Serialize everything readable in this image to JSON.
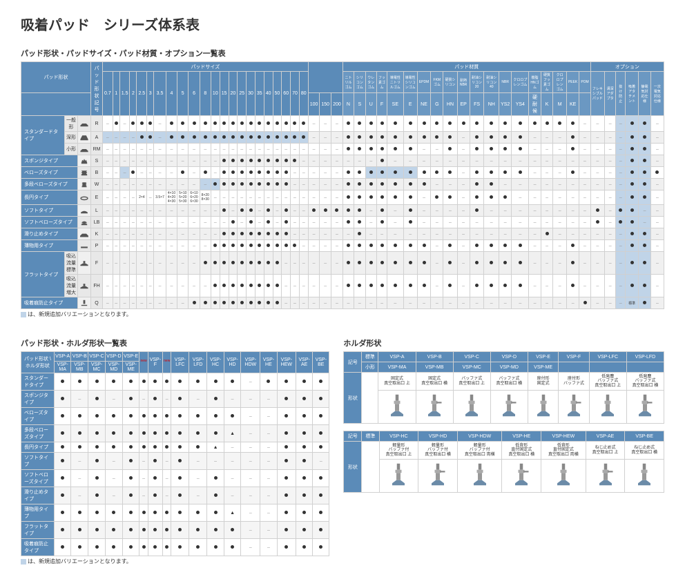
{
  "title": "吸着パッド　シリーズ体系表",
  "section1_title": "パッド形状・パッドサイズ・パッド材質・オプション一覧表",
  "section2_title": "パッド形状・ホルダ形状一覧表",
  "section3_title": "ホルダ形状",
  "note_text": "は、新規追加バリエーションとなります。",
  "main": {
    "header_groups": [
      "パッド形状",
      "パッド形状記号",
      "パッドサイズ",
      "",
      "パッド材質",
      "",
      "オプション"
    ],
    "size_cols": [
      "0.7",
      "1",
      "1.5",
      "2",
      "2.5",
      "3",
      "3.5",
      "4",
      "5",
      "6",
      "8",
      "10",
      "15",
      "20",
      "25",
      "30",
      "35",
      "40",
      "50",
      "60",
      "70",
      "80"
    ],
    "size_cols2": [
      "100",
      "150",
      "200"
    ],
    "mat_cols": [
      "ニトリルゴム",
      "シリコンゴム",
      "ウレタンゴム",
      "フッ素ゴム",
      "導電性ニトリルゴム",
      "導電性シリコンゴム",
      "EPDM",
      "FKMゴム",
      "硬質シリコン",
      "耐熱NBR",
      "耐油シリコン20",
      "耐油シリコン40",
      "NBR",
      "クロロプレンゴム",
      "樹脂HNゴム",
      "硬質フッ素ゴム",
      "クロロプレンゴム",
      "PEEK",
      "POM"
    ],
    "mat_codes": [
      "N",
      "S",
      "U",
      "F",
      "SE",
      "E",
      "NE",
      "G",
      "HN",
      "EP",
      "FS",
      "NH",
      "YS2",
      "YS4",
      "硬耐候",
      "K",
      "M",
      "KE",
      ""
    ],
    "opt_cols": [
      "フレキシブルパッド",
      "溝深アダプタ",
      "抜け防止",
      "吸着アタチメント",
      "静電気対応仕様",
      "一次電気対応仕様"
    ],
    "rows": [
      {
        "group": "スタンダードタイプ",
        "label": "一般形",
        "code": "R",
        "icon": "flat",
        "cells": "-●-●●●-●●●●●●●●●●●●●●●",
        "cells2": "---",
        "mat": "●●●●●●●●●●●●●●●●●●-",
        "opt": "---●●-●"
      },
      {
        "group": "",
        "label": "深形",
        "code": "A",
        "icon": "deep",
        "hl": true,
        "cells": "----●●-●●●●●●●●●●●●●●●",
        "cells2": "---",
        "mat": "●●●●●●●●●-●●●●---●-",
        "opt": "---●●-●"
      },
      {
        "group": "",
        "label": "小形",
        "code": "RM",
        "icon": "flat",
        "cells": "----------------------",
        "cells2": "---",
        "mat": "●●●●●●--●-●●●●---●-",
        "opt": "---●●--"
      },
      {
        "label": "スポンジタイプ",
        "code": "S",
        "icon": "sponge",
        "cells": "------------●●●●●●●●●-",
        "cells2": "---",
        "mat": "---●---------------",
        "opt": "---●●--"
      },
      {
        "label": "ベローズタイプ",
        "code": "B",
        "icon": "bellows",
        "hl": [
          2,
          24,
          25,
          26,
          27
        ],
        "cells": "---●----●-●-●●●●●●●●--",
        "cells2": "---",
        "mat": "●●●●●●●●●-●●●●---●-",
        "opt": "---●●●▲"
      },
      {
        "label": "多段ベローズタイプ",
        "code": "W",
        "icon": "mbellows",
        "hl": [
          10,
          11
        ],
        "cells": "-----------●●●●●●●●●--",
        "cells2": "---",
        "mat": "●●●●●●●---●●-------",
        "opt": "---●●--"
      },
      {
        "label": "長円タイプ",
        "code": "E",
        "icon": "oval",
        "multi": true,
        "cells": "----2×4-3.5×7 4×10 4×20 4×30 5×10 5×20 5×30 6×10 6×20 6×30 8×20 8×30-●●●●●●●●●●",
        "cells2": "---",
        "mat": "●●●●●●-●●-●●●------",
        "opt": "---●●--"
      },
      {
        "label": "ソフトタイプ",
        "code": "L",
        "icon": "soft",
        "cells": "------------●-●●-●-●--",
        "cells2": "●●●",
        "mat": "●●-●-●----●--------",
        "opt": "●-●●---"
      },
      {
        "label": "ソフトベローズタイプ",
        "code": "LB",
        "icon": "sbellows",
        "cells": "-------------●-●-●-●--",
        "cells2": "---",
        "mat": "●●-●-●-------------",
        "opt": "●-●●---"
      },
      {
        "label": "滑り止めタイプ",
        "code": "K",
        "icon": "grip",
        "cells": "------------●●●●●●●●--",
        "cells2": "---",
        "mat": "-●-------------●---",
        "opt": "---●●--"
      },
      {
        "label": "薄物用タイプ",
        "code": "P",
        "icon": "thin",
        "cells": "-----------●●●●●●●●●●-",
        "cells2": "---",
        "mat": "●●●●●●●-●-●●●●---●-",
        "opt": "---●●-●"
      },
      {
        "group": "フラットタイプ",
        "label": "吸込流量標準",
        "code": "F",
        "icon": "flatf",
        "cells": "----------●●●●●●●●●---",
        "cells2": "---",
        "mat": "●●●●●●●-●-●●●●---●-",
        "opt": "---●●-●"
      },
      {
        "group": "",
        "label": "吸込流量増大",
        "code": "FH",
        "icon": "flatf",
        "cells": "-----------●●●●●●●●---",
        "cells2": "---",
        "mat": "●●●●●●●-●-●●●●---●-",
        "opt": "---●●-●"
      },
      {
        "label": "吸着痕防止タイプ",
        "code": "Q",
        "icon": "mark",
        "cells": "---------●●●●●●●●●●---",
        "cells2": "---",
        "mat": "------------------●",
        "opt": "---標準●--"
      }
    ]
  },
  "holder_matrix": {
    "cols": [
      "VSP-A",
      "VSP-B",
      "VSP-C",
      "VSP-D",
      "VSP-E",
      "",
      "VSP-F",
      "",
      "VSP-LFC",
      "VSP-LFD",
      "VSP-HC",
      "VSP-HD",
      "VSP-HDW",
      "VSP-HE",
      "VSP-HEW",
      "VSP-AE",
      "VSP-BE"
    ],
    "sub_cols": [
      "VSP-MA",
      "VSP-MB",
      "VSP-MC",
      "VSP-MD",
      "VSP-ME",
      "",
      "",
      "",
      "",
      "",
      "",
      "",
      "",
      "",
      "",
      "",
      ""
    ],
    "rows": [
      {
        "label": "スタンダードタイプ",
        "cells": "●●●●●●●●●●●●-●●●●--●●"
      },
      {
        "label": "スポンジタイプ",
        "cells": "●-●-●-●-●-●---●●●●●--"
      },
      {
        "label": "ベローズタイプ",
        "cells": "●●●●●●●●●●●●--●●●●●●●"
      },
      {
        "label": "多段ベローズタイプ",
        "cells": "●●●●●●●●●●●▲--●●●●●--"
      },
      {
        "label": "長円タイプ",
        "cells": "●●●●●●●●●●▲---●●●●●--"
      },
      {
        "label": "ソフトタイプ",
        "cells": "●-●-●-●-●-----●●-●●--"
      },
      {
        "label": "ソフトベローズタイプ",
        "cells": "●-●-●-●-●-●---●●●●●--"
      },
      {
        "label": "滑り止めタイプ",
        "cells": "●-●-●-●-●-●---●●●●●--"
      },
      {
        "label": "薄物用タイプ",
        "cells": "●●●●●●●●●●●▲--●●●●●--"
      },
      {
        "label": "フラットタイプ",
        "cells": "●●●●●●●●●●●●--●●●●●●●"
      },
      {
        "label": "吸着痕防止タイプ",
        "cells": "●●●●●●●●●●●●--●●●●●--"
      }
    ]
  },
  "holder_shapes": {
    "row1_cols": [
      "VSP-A",
      "VSP-B",
      "VSP-C",
      "VSP-D",
      "VSP-E",
      "VSP-F",
      "VSP-LFC",
      "VSP-LFD"
    ],
    "row1_sub": [
      "VSP-MA",
      "VSP-MB",
      "VSP-MC",
      "VSP-MD",
      "VSP-ME",
      "",
      "",
      ""
    ],
    "row1_desc": [
      "固定式\n真空取出口 上",
      "固定式\n真空取出口 横",
      "バッファ式\n真空取出口 上",
      "バッファ式\n真空取出口 横",
      "座付形\n固定式",
      "座付形\nバッファ式",
      "低発塵\nバッファ式\n真空取出口 上",
      "低発塵\nバッファ式\n真空取出口 横"
    ],
    "row2_cols": [
      "VSP-HC",
      "VSP-HD",
      "VSP-HDW",
      "VSP-HE",
      "VSP-HEW",
      "VSP-AE",
      "VSP-BE"
    ],
    "row2_desc": [
      "軽量形\nバッファ付\n真空取出口 上",
      "軽量形\nバッファ付\n真空取出口 横",
      "軽量形\nバッファ付\n真空取出口 両横",
      "低背形\n直付固定式\n真空取出口 横",
      "低背形\n直付固定式\n真空取出口 両横",
      "ねじ止め式\n真空取出口 上",
      "ねじ止め式\n真空取出口 横"
    ],
    "row_labels": [
      "記号",
      "形状"
    ],
    "std_label": "標準",
    "small_label": "小形"
  }
}
